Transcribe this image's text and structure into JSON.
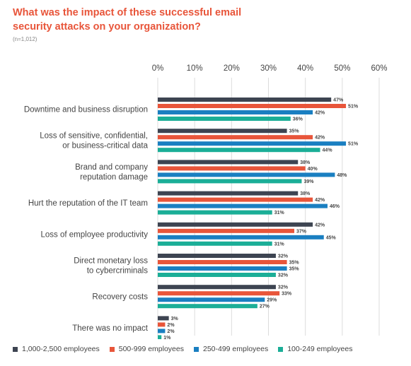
{
  "title": "What was the impact of these successful email security attacks on your organization?",
  "subtitle": "(n=1,012)",
  "chart_data": {
    "type": "bar",
    "orientation": "horizontal",
    "xlim": [
      0,
      60
    ],
    "xticks": [
      "0%",
      "10%",
      "20%",
      "30%",
      "40%",
      "50%",
      "60%"
    ],
    "xtick_values": [
      0,
      10,
      20,
      30,
      40,
      50,
      60
    ],
    "grid": true,
    "legend_position": "bottom",
    "categories": [
      [
        "Downtime and business disruption"
      ],
      [
        "Loss of sensitive, confidential,",
        "or business-critical data"
      ],
      [
        "Brand and company",
        "reputation damage"
      ],
      [
        "Hurt the reputation of the IT team"
      ],
      [
        "Loss of employee productivity"
      ],
      [
        "Direct monetary loss",
        "to cybercriminals"
      ],
      [
        "Recovery costs"
      ],
      [
        "There was no impact"
      ]
    ],
    "series": [
      {
        "name": "1,000-2,500 employees",
        "color": "#3d4451",
        "values": [
          47,
          35,
          38,
          38,
          42,
          32,
          32,
          3
        ]
      },
      {
        "name": "500-999 employees",
        "color": "#e8553a",
        "values": [
          51,
          42,
          40,
          42,
          37,
          35,
          33,
          2
        ]
      },
      {
        "name": "250-499 employees",
        "color": "#1a7fc1",
        "values": [
          42,
          51,
          48,
          46,
          45,
          35,
          29,
          2
        ]
      },
      {
        "name": "100-249 employees",
        "color": "#1bae97",
        "values": [
          36,
          44,
          39,
          31,
          31,
          32,
          27,
          1
        ]
      }
    ]
  }
}
